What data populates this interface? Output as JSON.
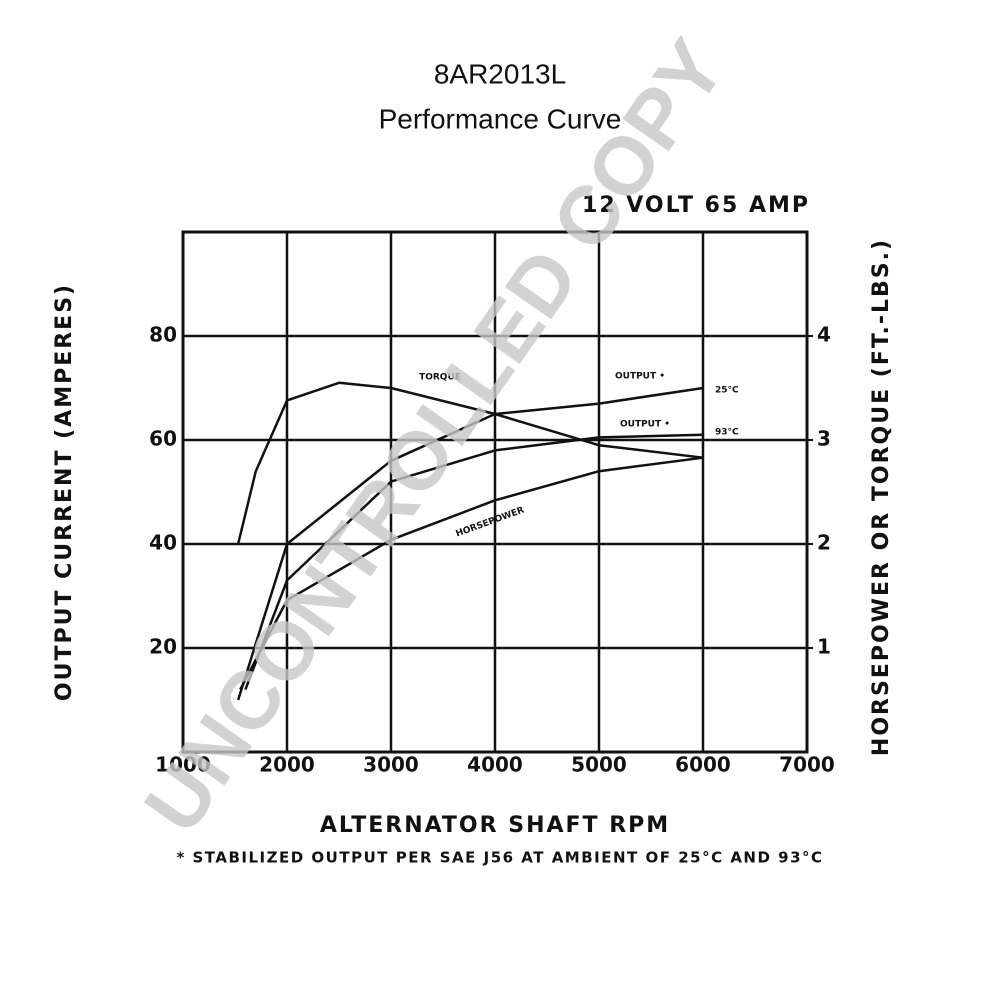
{
  "chart_data": {
    "type": "line",
    "title": "8AR2013L",
    "subtitle": "Performance Curve",
    "rating": "12 VOLT 65 AMP",
    "x_label": "ALTERNATOR SHAFT RPM",
    "y_label": "OUTPUT CURRENT (AMPERES)",
    "y2_label": "HORSEPOWER OR TORQUE (FT.-LBS.)",
    "footnote": "* STABILIZED OUTPUT PER SAE J56 AT AMBIENT OF 25°C AND 93°C",
    "watermark": "UNCONTROLLED COPY",
    "annotations": [
      "25°C",
      "93°C"
    ],
    "xlim": [
      1000,
      7000
    ],
    "xticks": [
      1000,
      2000,
      3000,
      4000,
      5000,
      6000,
      7000
    ],
    "ylim": [
      0,
      100
    ],
    "yticks": [
      20,
      40,
      60,
      80
    ],
    "y2lim": [
      0,
      5
    ],
    "y2ticks": [
      1,
      2,
      3,
      4
    ],
    "grid": true,
    "series": [
      {
        "name": "TORQUE",
        "color": "#111111",
        "axis": "y2",
        "x": [
          1530,
          1700,
          2000,
          2500,
          3000,
          4000,
          5000,
          6000
        ],
        "values": [
          2.0,
          2.7,
          3.38,
          3.55,
          3.5,
          3.25,
          2.95,
          2.83
        ]
      },
      {
        "name": "OUTPUT •",
        "color": "#111111",
        "x": [
          1530,
          2000,
          3000,
          4000,
          5000,
          6000
        ],
        "values": [
          10,
          40,
          56,
          65,
          67,
          70
        ]
      },
      {
        "name": "OUTPUT •",
        "color": "#111111",
        "x": [
          1600,
          2000,
          3000,
          4000,
          5000,
          6000
        ],
        "values": [
          12,
          33,
          52,
          58,
          60.5,
          61
        ]
      },
      {
        "name": "HORSEPOWER",
        "color": "#111111",
        "axis": "y2",
        "x": [
          1550,
          2000,
          3000,
          4000,
          5000,
          6000
        ],
        "values": [
          0.6,
          1.46,
          2.04,
          2.42,
          2.7,
          2.83
        ]
      }
    ]
  }
}
